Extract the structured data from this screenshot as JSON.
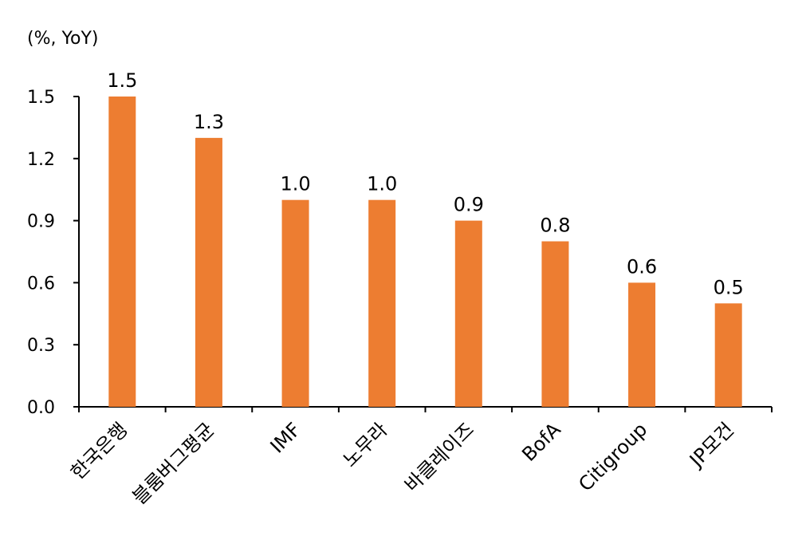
{
  "chart_data": {
    "type": "bar",
    "unit_label": "(%, YoY)",
    "categories": [
      "한국은행",
      "블룸버그평균",
      "IMF",
      "노무라",
      "바클레이즈",
      "BofA",
      "Citigroup",
      "JP모건"
    ],
    "values": [
      1.5,
      1.3,
      1.0,
      1.0,
      0.9,
      0.8,
      0.6,
      0.5
    ],
    "data_labels": [
      "1.5",
      "1.3",
      "1.0",
      "1.0",
      "0.9",
      "0.8",
      "0.6",
      "0.5"
    ],
    "y_ticks": [
      0.0,
      0.3,
      0.6,
      0.9,
      1.2,
      1.5
    ],
    "y_tick_labels": [
      "0.0",
      "0.3",
      "0.6",
      "0.9",
      "1.2",
      "1.5"
    ],
    "ylim": [
      0,
      1.5
    ],
    "grid": false,
    "legend": "none",
    "bar_color": "#ED7D31",
    "axis_color": "#000000"
  }
}
